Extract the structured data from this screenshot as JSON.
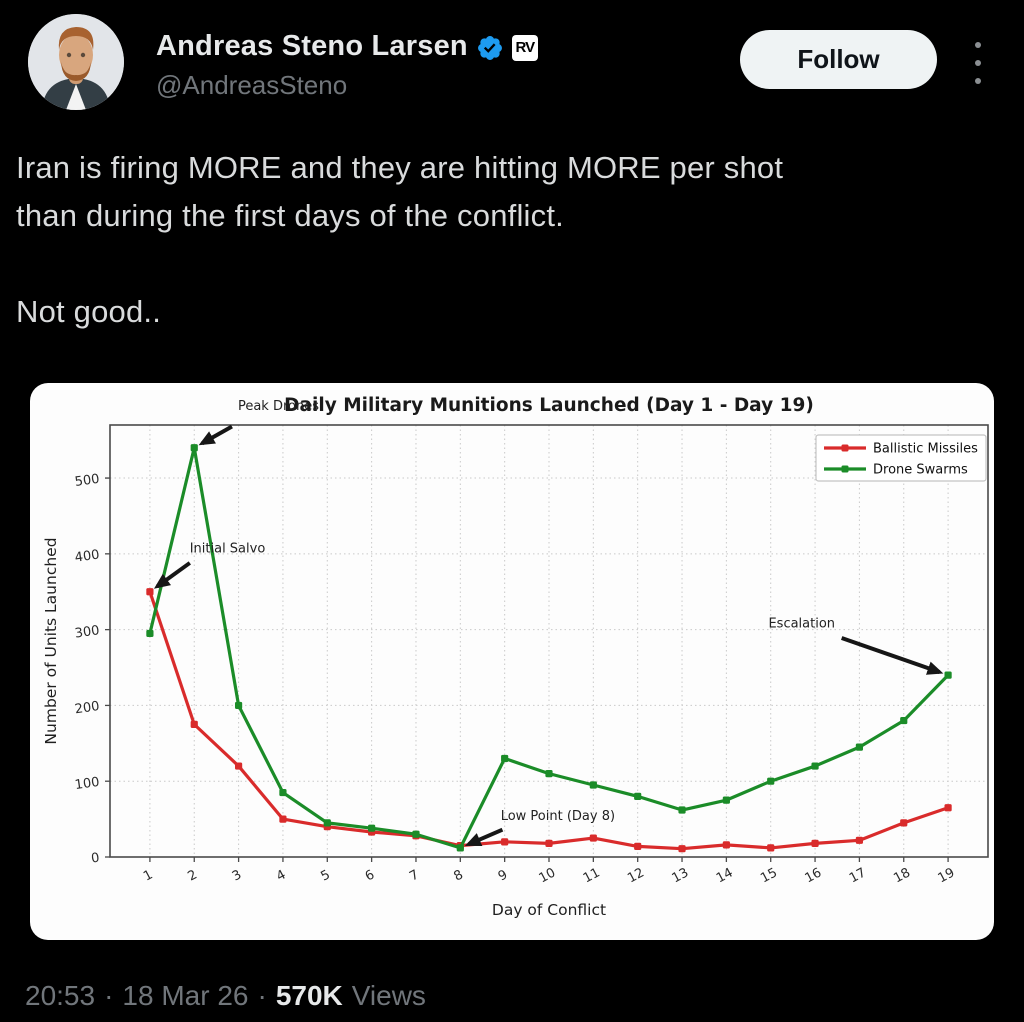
{
  "colors": {
    "accent_verified": "#1d9bf0",
    "background": "#000000",
    "card_background": "#fdfdfd",
    "missiles_red": "#d92b2b",
    "drones_green": "#1b8c28"
  },
  "header": {
    "display_name": "Andreas Steno Larsen",
    "handle": "@AndreasSteno",
    "affiliate_badge_text": "RV",
    "follow_button_label": "Follow"
  },
  "tweet": {
    "lines": [
      "Iran is firing MORE and they are hitting MORE per shot",
      "than during the first days of the conflict.",
      "",
      "Not good.."
    ]
  },
  "chart_data": {
    "type": "line",
    "title": "Daily Military Munitions Launched (Day 1 - Day 19)",
    "xlabel": "Day of Conflict",
    "ylabel": "Number of Units Launched",
    "x": [
      1,
      2,
      3,
      4,
      5,
      6,
      7,
      8,
      9,
      10,
      11,
      12,
      13,
      14,
      15,
      16,
      17,
      18,
      19
    ],
    "series": [
      {
        "name": "Ballistic Missiles",
        "color": "#d92b2b",
        "values": [
          350,
          175,
          120,
          50,
          40,
          33,
          28,
          15,
          20,
          18,
          25,
          14,
          11,
          16,
          12,
          18,
          22,
          45,
          65
        ]
      },
      {
        "name": "Drone Swarms",
        "color": "#1b8c28",
        "values": [
          295,
          540,
          200,
          85,
          45,
          38,
          30,
          12,
          130,
          110,
          95,
          80,
          62,
          75,
          100,
          120,
          145,
          180,
          240
        ]
      }
    ],
    "ylim": [
      0,
      570
    ],
    "yticks": [
      0,
      100,
      200,
      300,
      400,
      500
    ],
    "grid": true,
    "legend_position": "upper right",
    "annotations": [
      {
        "label": "Peak Drones",
        "text_at": [
          3.9,
          590
        ],
        "tail": [
          2.85,
          568
        ],
        "target": [
          2,
          540
        ]
      },
      {
        "label": "Initial Salvo",
        "text_at": [
          2.75,
          402
        ],
        "tail": [
          1.9,
          388
        ],
        "target": [
          1,
          350
        ]
      },
      {
        "label": "Low Point (Day 8)",
        "text_at": [
          10.2,
          49
        ],
        "tail": [
          8.95,
          36
        ],
        "target": [
          8,
          12
        ]
      },
      {
        "label": "Escalation",
        "text_at": [
          15.7,
          303
        ],
        "tail": [
          16.6,
          289
        ],
        "target": [
          19,
          240
        ]
      }
    ]
  },
  "footer": {
    "time": "20:53",
    "separator": "·",
    "date": "18 Mar 26",
    "views_count": "570K",
    "views_label": "Views"
  }
}
